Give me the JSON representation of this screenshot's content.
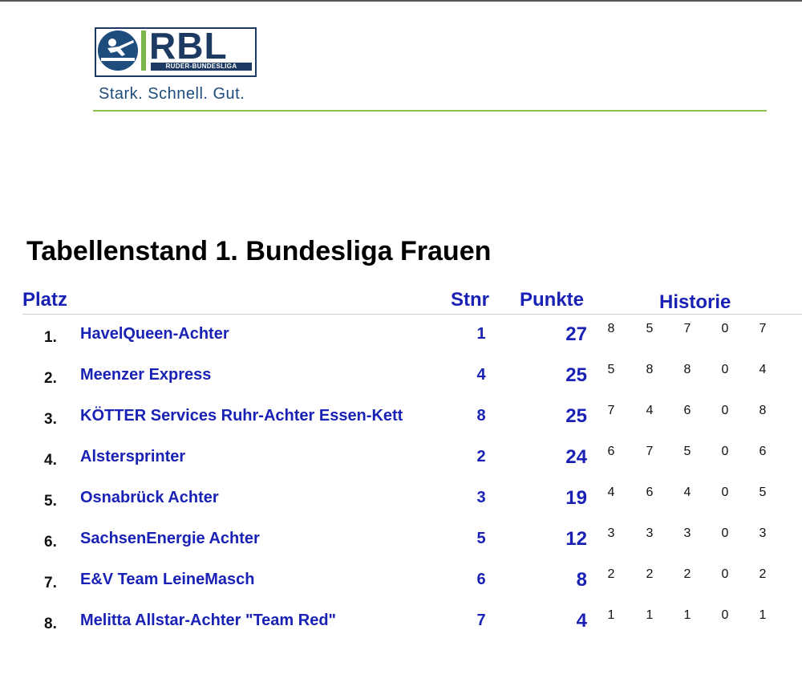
{
  "header": {
    "logo_text": "RBL",
    "logo_subtitle": "RUDER-BUNDESLIGA",
    "slogan": "Stark. Schnell. Gut."
  },
  "title": "Tabellenstand 1. Bundesliga Frauen",
  "columns": {
    "platz": "Platz",
    "stnr": "Stnr",
    "punkte": "Punkte",
    "historie": "Historie"
  },
  "rows": [
    {
      "rank": "1.",
      "team": "HavelQueen-Achter",
      "stnr": "1",
      "punkte": "27",
      "history": [
        "8",
        "5",
        "7",
        "0",
        "7"
      ]
    },
    {
      "rank": "2.",
      "team": "Meenzer Express",
      "stnr": "4",
      "punkte": "25",
      "history": [
        "5",
        "8",
        "8",
        "0",
        "4"
      ]
    },
    {
      "rank": "3.",
      "team": "KÖTTER Services Ruhr-Achter Essen-Kett",
      "stnr": "8",
      "punkte": "25",
      "history": [
        "7",
        "4",
        "6",
        "0",
        "8"
      ]
    },
    {
      "rank": "4.",
      "team": "Alstersprinter",
      "stnr": "2",
      "punkte": "24",
      "history": [
        "6",
        "7",
        "5",
        "0",
        "6"
      ]
    },
    {
      "rank": "5.",
      "team": "Osnabrück Achter",
      "stnr": "3",
      "punkte": "19",
      "history": [
        "4",
        "6",
        "4",
        "0",
        "5"
      ]
    },
    {
      "rank": "6.",
      "team": "SachsenEnergie Achter",
      "stnr": "5",
      "punkte": "12",
      "history": [
        "3",
        "3",
        "3",
        "0",
        "3"
      ]
    },
    {
      "rank": "7.",
      "team": "E&V Team LeineMasch",
      "stnr": "6",
      "punkte": "8",
      "history": [
        "2",
        "2",
        "2",
        "0",
        "2"
      ]
    },
    {
      "rank": "8.",
      "team": "Melitta Allstar-Achter \"Team Red\"",
      "stnr": "7",
      "punkte": "4",
      "history": [
        "1",
        "1",
        "1",
        "0",
        "1"
      ]
    }
  ]
}
